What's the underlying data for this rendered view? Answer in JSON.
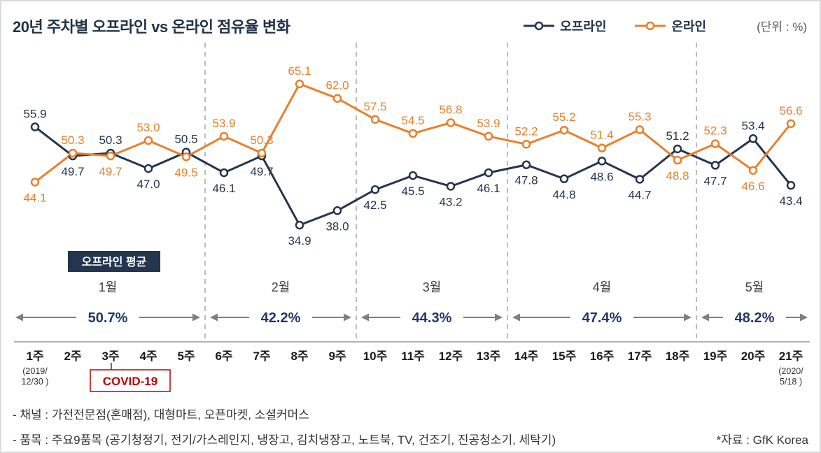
{
  "chart_data": {
    "type": "line",
    "title": "20년 주차별 오프라인 vs 온라인 점유율 변화",
    "unit_label": "(단위 : %)",
    "x": [
      "1주",
      "2주",
      "3주",
      "4주",
      "5주",
      "6주",
      "7주",
      "8주",
      "9주",
      "10주",
      "11주",
      "12주",
      "13주",
      "14주",
      "15주",
      "16주",
      "17주",
      "18주",
      "19주",
      "20주",
      "21주"
    ],
    "x_range_note": {
      "first": [
        "(2019/",
        "12/30 )"
      ],
      "last": [
        "(2020/",
        "5/18 )"
      ]
    },
    "series": [
      {
        "key": "offline",
        "name": "오프라인",
        "color": "#24364E",
        "values": [
          55.9,
          49.7,
          50.3,
          47.0,
          50.5,
          46.1,
          49.7,
          34.9,
          38.0,
          42.5,
          45.5,
          43.2,
          46.1,
          47.8,
          44.8,
          48.6,
          44.7,
          51.2,
          47.7,
          53.4,
          43.4
        ]
      },
      {
        "key": "online",
        "name": "온라인",
        "color": "#E8802D",
        "values": [
          44.1,
          50.3,
          49.7,
          53.0,
          49.5,
          53.9,
          50.3,
          65.1,
          62.0,
          57.5,
          54.5,
          56.8,
          53.9,
          52.2,
          55.2,
          51.4,
          55.3,
          48.8,
          52.3,
          46.6,
          56.6
        ]
      }
    ],
    "ylim": [
      30,
      70
    ],
    "grid": false,
    "legend_position": "top",
    "month_sections": [
      {
        "label": "1월",
        "avg_label": "50.7%",
        "start_week": 1,
        "end_week": 5
      },
      {
        "label": "2월",
        "avg_label": "42.2%",
        "start_week": 6,
        "end_week": 9
      },
      {
        "label": "3월",
        "avg_label": "44.3%",
        "start_week": 10,
        "end_week": 13
      },
      {
        "label": "4월",
        "avg_label": "47.4%",
        "start_week": 14,
        "end_week": 18
      },
      {
        "label": "5월",
        "avg_label": "48.2%",
        "start_week": 19,
        "end_week": 21
      }
    ],
    "annotations": {
      "avg_badge": "오프라인 평균",
      "covid": "COVID-19"
    },
    "colors": {
      "divider": "#A6A6A6",
      "arrow": "#7F7F7F",
      "avg_value": "#1F3864",
      "covid": "#C00000",
      "badge_bg": "#24364E",
      "axis": "#999999"
    }
  },
  "footer": {
    "note_channel": "- 채널 : 가전전문점(혼매점), 대형마트, 오픈마켓, 소셜커머스",
    "note_items": "- 품목 : 주요9품목 (공기청정기, 전기/가스레인지, 냉장고, 김치냉장고, 노트북, TV, 건조기, 진공청소기, 세탁기)",
    "source": "*자료 : GfK Korea"
  }
}
